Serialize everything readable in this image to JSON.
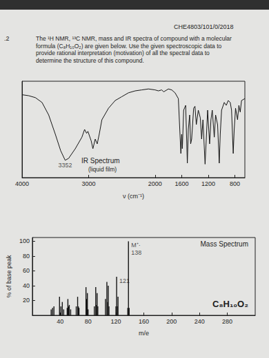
{
  "page": {
    "header": "CHE4803/101/0/2018",
    "question": ".2",
    "text": "The ¹H NMR, ¹³C NMR, mass and IR spectra of compound with a molecular formula (C₈H₁₀O₂) are given below. Use the given spectroscopic data to provide rational interpretation (motivation) of all the spectral data to determine the structure of this compound."
  },
  "chart_data": [
    {
      "type": "line",
      "title": "IR Spectrum",
      "subtitle": "(liquid film)",
      "x_label": "ν (cm⁻¹)",
      "x": [
        4000,
        3900,
        3800,
        3700,
        3600,
        3500,
        3420,
        3352,
        3300,
        3200,
        3100,
        3060,
        3030,
        3010,
        2960,
        2935,
        2900,
        2870,
        2840,
        2800,
        2700,
        2600,
        2500,
        2400,
        2300,
        2200,
        2100,
        2000,
        1950,
        1900,
        1870,
        1800,
        1750,
        1700,
        1650,
        1612,
        1600,
        1590,
        1570,
        1540,
        1515,
        1500,
        1480,
        1465,
        1450,
        1420,
        1400,
        1380,
        1350,
        1320,
        1300,
        1280,
        1248,
        1230,
        1210,
        1180,
        1160,
        1140,
        1110,
        1090,
        1060,
        1035,
        1020,
        1000,
        960,
        930,
        900,
        870,
        850,
        825,
        810,
        790,
        760,
        740,
        720,
        700,
        650
      ],
      "values": [
        86,
        85,
        83,
        78,
        65,
        45,
        28,
        18,
        20,
        30,
        42,
        50,
        46,
        48,
        38,
        30,
        40,
        35,
        45,
        60,
        72,
        80,
        84,
        88,
        90,
        91,
        92,
        91,
        90,
        91,
        89,
        92,
        91,
        88,
        82,
        25,
        45,
        30,
        70,
        75,
        15,
        50,
        65,
        35,
        40,
        72,
        74,
        55,
        70,
        62,
        40,
        60,
        14,
        40,
        70,
        35,
        60,
        70,
        42,
        65,
        55,
        15,
        45,
        70,
        78,
        75,
        80,
        78,
        70,
        25,
        50,
        72,
        60,
        75,
        68,
        80,
        82
      ],
      "color": "#151515",
      "xlim": [
        4000,
        650
      ],
      "xticks": [
        4000,
        3000,
        2000,
        1600,
        1200,
        800
      ],
      "ylim": [
        0,
        100
      ],
      "tick_labels": "x",
      "grid": false,
      "annotations": [
        {
          "x": 3352,
          "text": "3352"
        }
      ]
    },
    {
      "type": "bar",
      "title": "Mass Spectrum",
      "formula": "C₈H₁₀O₂",
      "x_label": "m/e",
      "y_label": "% of base peak",
      "x": [
        27,
        29,
        31,
        39,
        41,
        43,
        45,
        50,
        51,
        52,
        53,
        55,
        63,
        65,
        66,
        67,
        77,
        78,
        79,
        80,
        89,
        91,
        92,
        93,
        94,
        105,
        107,
        108,
        109,
        110,
        120,
        121,
        122,
        123,
        137,
        138,
        139
      ],
      "values": [
        8,
        10,
        12,
        25,
        12,
        18,
        8,
        10,
        22,
        12,
        14,
        8,
        12,
        25,
        12,
        10,
        38,
        22,
        30,
        8,
        12,
        38,
        14,
        30,
        12,
        22,
        45,
        18,
        40,
        12,
        12,
        52,
        12,
        25,
        10,
        100,
        10
      ],
      "color": "#151515",
      "xlim": [
        0,
        320
      ],
      "xticks": [
        40,
        80,
        120,
        160,
        200,
        240,
        280
      ],
      "ylim": [
        0,
        105
      ],
      "yticks": [
        20,
        40,
        60,
        80,
        100
      ],
      "grid": false,
      "annotations": [
        {
          "x": 138,
          "text": "M⁺·"
        },
        {
          "x": 138,
          "text": "138"
        },
        {
          "x": 121,
          "text": "121"
        }
      ]
    }
  ]
}
